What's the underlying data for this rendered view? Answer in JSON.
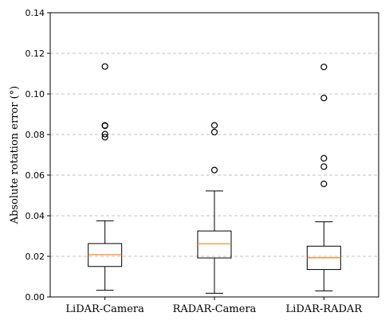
{
  "chart_data": {
    "type": "box",
    "ylabel": "Absolute rotation error (°)",
    "xlabel": "",
    "ylim": [
      0.0,
      0.14
    ],
    "yticks": [
      "0.00",
      "0.02",
      "0.04",
      "0.06",
      "0.08",
      "0.10",
      "0.12",
      "0.14"
    ],
    "grid": "y-dashed",
    "median_color": "#ff7f0e",
    "categories": [
      "LiDAR-Camera",
      "RADAR-Camera",
      "LiDAR-RADAR"
    ],
    "boxes": [
      {
        "category": "LiDAR-Camera",
        "whisker_low": 0.0033,
        "q1": 0.015,
        "median": 0.0208,
        "q3": 0.0263,
        "whisker_high": 0.0375,
        "outliers": [
          0.1135,
          0.0845,
          0.0843,
          0.0802,
          0.0787
        ]
      },
      {
        "category": "RADAR-Camera",
        "whisker_low": 0.0018,
        "q1": 0.0192,
        "median": 0.0262,
        "q3": 0.0325,
        "whisker_high": 0.0522,
        "outliers": [
          0.0845,
          0.0812,
          0.0625
        ]
      },
      {
        "category": "LiDAR-RADAR",
        "whisker_low": 0.003,
        "q1": 0.0135,
        "median": 0.0193,
        "q3": 0.025,
        "whisker_high": 0.037,
        "outliers": [
          0.1133,
          0.098,
          0.0683,
          0.0642,
          0.0557
        ]
      }
    ]
  }
}
